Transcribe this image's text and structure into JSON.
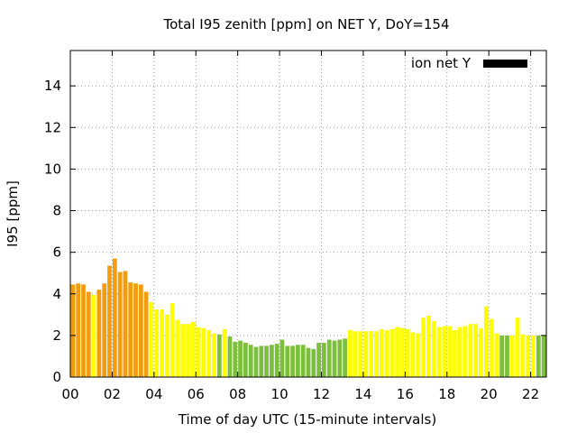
{
  "chart_data": {
    "type": "bar",
    "title": "Total I95 zenith [ppm] on NET Y, DoY=154",
    "xlabel": "Time of day UTC (15-minute intervals)",
    "ylabel": "I95 [ppm]",
    "ylim": [
      0,
      15.7
    ],
    "xlim": [
      0,
      22.75
    ],
    "grid": true,
    "legend_position": "top-right",
    "legend": [
      {
        "label": "ion net Y",
        "color": "#000000"
      }
    ],
    "yticks": [
      0,
      2,
      4,
      6,
      8,
      10,
      12,
      14
    ],
    "yticklabels": [
      "0",
      "2",
      "4",
      "6",
      "8",
      "10",
      "12",
      "14"
    ],
    "xticks": [
      0,
      2,
      4,
      6,
      8,
      10,
      12,
      14,
      16,
      18,
      20,
      22
    ],
    "xticklabels": [
      "00",
      "02",
      "04",
      "06",
      "08",
      "10",
      "12",
      "14",
      "16",
      "18",
      "20",
      "22"
    ],
    "interval_hours": 0.25,
    "colors": {
      "orange": "#f39c0e",
      "yellow": "#ffff00",
      "green": "#7cbf3c"
    },
    "values": [
      4.45,
      4.5,
      4.45,
      4.1,
      3.95,
      4.2,
      4.5,
      5.35,
      5.7,
      5.05,
      5.1,
      4.55,
      4.5,
      4.45,
      4.1,
      3.6,
      3.25,
      3.25,
      3.0,
      3.55,
      2.75,
      2.55,
      2.55,
      2.65,
      2.4,
      2.35,
      2.25,
      2.1,
      2.05,
      2.3,
      1.95,
      1.7,
      1.75,
      1.65,
      1.55,
      1.45,
      1.5,
      1.5,
      1.55,
      1.6,
      1.8,
      1.5,
      1.5,
      1.55,
      1.55,
      1.4,
      1.35,
      1.65,
      1.65,
      1.8,
      1.75,
      1.8,
      1.85,
      2.25,
      2.2,
      2.2,
      2.2,
      2.2,
      2.2,
      2.3,
      2.25,
      2.3,
      2.4,
      2.35,
      2.3,
      2.15,
      2.1,
      2.85,
      2.95,
      2.7,
      2.4,
      2.45,
      2.45,
      2.25,
      2.4,
      2.45,
      2.55,
      2.55,
      2.35,
      3.4,
      2.8,
      2.1,
      2.0,
      2.0,
      2.0,
      2.85,
      2.05,
      2.0,
      2.0,
      2.0,
      2.0
    ],
    "value_colors": [
      "orange",
      "orange",
      "orange",
      "orange",
      "yellow",
      "orange",
      "orange",
      "orange",
      "orange",
      "orange",
      "orange",
      "orange",
      "orange",
      "orange",
      "orange",
      "yellow",
      "yellow",
      "yellow",
      "yellow",
      "yellow",
      "yellow",
      "yellow",
      "yellow",
      "yellow",
      "yellow",
      "yellow",
      "yellow",
      "yellow",
      "green",
      "yellow",
      "green",
      "green",
      "green",
      "green",
      "green",
      "green",
      "green",
      "green",
      "green",
      "green",
      "green",
      "green",
      "green",
      "green",
      "green",
      "green",
      "green",
      "green",
      "green",
      "green",
      "green",
      "green",
      "green",
      "yellow",
      "yellow",
      "yellow",
      "yellow",
      "yellow",
      "yellow",
      "yellow",
      "yellow",
      "yellow",
      "yellow",
      "yellow",
      "yellow",
      "yellow",
      "yellow",
      "yellow",
      "yellow",
      "yellow",
      "yellow",
      "yellow",
      "yellow",
      "yellow",
      "yellow",
      "yellow",
      "yellow",
      "yellow",
      "yellow",
      "yellow",
      "yellow",
      "yellow",
      "green",
      "green",
      "yellow",
      "yellow",
      "yellow",
      "yellow",
      "yellow",
      "green",
      "green"
    ]
  }
}
